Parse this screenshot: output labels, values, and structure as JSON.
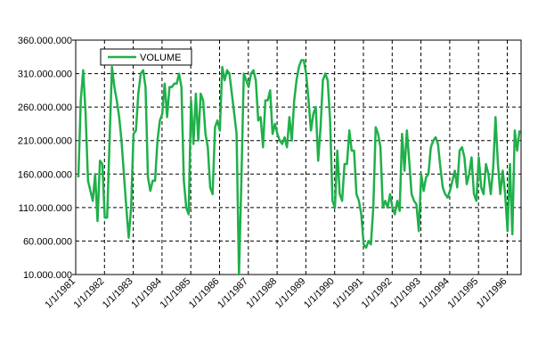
{
  "chart_data": {
    "type": "line",
    "categories": [
      "1/1/1981",
      null,
      null,
      null,
      null,
      null,
      null,
      null,
      null,
      null,
      null,
      null,
      "1/1/1982",
      null,
      null,
      null,
      null,
      null,
      null,
      null,
      null,
      null,
      null,
      null,
      "1/1/1983",
      null,
      null,
      null,
      null,
      null,
      null,
      null,
      null,
      null,
      null,
      null,
      "1/1/1984",
      null,
      null,
      null,
      null,
      null,
      null,
      null,
      null,
      null,
      null,
      null,
      "1/1/1985",
      null,
      null,
      null,
      null,
      null,
      null,
      null,
      null,
      null,
      null,
      null,
      "1/1/1986",
      null,
      null,
      null,
      null,
      null,
      null,
      null,
      null,
      null,
      null,
      null,
      "1/1/1987",
      null,
      null,
      null,
      null,
      null,
      null,
      null,
      null,
      null,
      null,
      null,
      "1/1/1988",
      null,
      null,
      null,
      null,
      null,
      null,
      null,
      null,
      null,
      null,
      null,
      "1/1/1989",
      null,
      null,
      null,
      null,
      null,
      null,
      null,
      null,
      null,
      null,
      null,
      "1/1/1990",
      null,
      null,
      null,
      null,
      null,
      null,
      null,
      null,
      null,
      null,
      null,
      "1/1/1991",
      null,
      null,
      null,
      null,
      null,
      null,
      null,
      null,
      null,
      null,
      null,
      "1/1/1992",
      null,
      null,
      null,
      null,
      null,
      null,
      null,
      null,
      null,
      null,
      null,
      "1/1/1993",
      null,
      null,
      null,
      null,
      null,
      null,
      null,
      null,
      null,
      null,
      null,
      "1/1/1994",
      null,
      null,
      null,
      null,
      null,
      null,
      null,
      null,
      null,
      null,
      null,
      "1/1/1995",
      null,
      null,
      null,
      null,
      null,
      null,
      null,
      null,
      null,
      null,
      null,
      "1/1/1996",
      null,
      null,
      null,
      null
    ],
    "series": [
      {
        "name": "VOLUME",
        "color": "#1fb04a",
        "values": [
          155000000,
          270000000,
          315000000,
          250000000,
          150000000,
          135000000,
          120000000,
          160000000,
          90000000,
          180000000,
          175000000,
          95000000,
          95000000,
          210000000,
          320000000,
          290000000,
          270000000,
          245000000,
          210000000,
          160000000,
          110000000,
          65000000,
          110000000,
          220000000,
          225000000,
          280000000,
          310000000,
          315000000,
          290000000,
          155000000,
          135000000,
          150000000,
          150000000,
          210000000,
          240000000,
          250000000,
          295000000,
          245000000,
          290000000,
          290000000,
          295000000,
          295000000,
          310000000,
          290000000,
          150000000,
          110000000,
          100000000,
          270000000,
          205000000,
          280000000,
          210000000,
          280000000,
          270000000,
          220000000,
          200000000,
          140000000,
          130000000,
          230000000,
          240000000,
          225000000,
          320000000,
          300000000,
          315000000,
          310000000,
          280000000,
          250000000,
          220000000,
          10000000,
          150000000,
          310000000,
          300000000,
          290000000,
          310000000,
          315000000,
          300000000,
          240000000,
          245000000,
          200000000,
          270000000,
          270000000,
          285000000,
          220000000,
          235000000,
          220000000,
          210000000,
          205000000,
          215000000,
          200000000,
          245000000,
          210000000,
          270000000,
          300000000,
          320000000,
          330000000,
          330000000,
          310000000,
          270000000,
          225000000,
          250000000,
          260000000,
          180000000,
          230000000,
          300000000,
          310000000,
          300000000,
          240000000,
          120000000,
          110000000,
          195000000,
          130000000,
          120000000,
          175000000,
          175000000,
          225000000,
          195000000,
          195000000,
          130000000,
          120000000,
          100000000,
          55000000,
          50000000,
          60000000,
          55000000,
          110000000,
          230000000,
          220000000,
          200000000,
          110000000,
          120000000,
          110000000,
          130000000,
          110000000,
          100000000,
          120000000,
          105000000,
          220000000,
          165000000,
          225000000,
          180000000,
          130000000,
          120000000,
          115000000,
          75000000,
          160000000,
          135000000,
          155000000,
          160000000,
          200000000,
          210000000,
          215000000,
          205000000,
          170000000,
          140000000,
          130000000,
          125000000,
          135000000,
          150000000,
          165000000,
          140000000,
          195000000,
          200000000,
          185000000,
          145000000,
          160000000,
          185000000,
          130000000,
          120000000,
          185000000,
          140000000,
          130000000,
          175000000,
          160000000,
          130000000,
          170000000,
          245000000,
          175000000,
          130000000,
          165000000,
          130000000,
          75000000,
          175000000,
          70000000,
          225000000,
          195000000,
          225000000
        ]
      }
    ],
    "ylim": [
      10000000,
      360000000
    ],
    "yticks": [
      {
        "value": 10000000,
        "label": "10.000.000"
      },
      {
        "value": 60000000,
        "label": "60.000.000"
      },
      {
        "value": 110000000,
        "label": "110.000.000"
      },
      {
        "value": 160000000,
        "label": "160.000.000"
      },
      {
        "value": 210000000,
        "label": "210.000.000"
      },
      {
        "value": 260000000,
        "label": "260.000.000"
      },
      {
        "value": 310000000,
        "label": "310.000.000"
      },
      {
        "value": 360000000,
        "label": "360.000.000"
      }
    ],
    "grid": true,
    "legend": "upper-left"
  }
}
